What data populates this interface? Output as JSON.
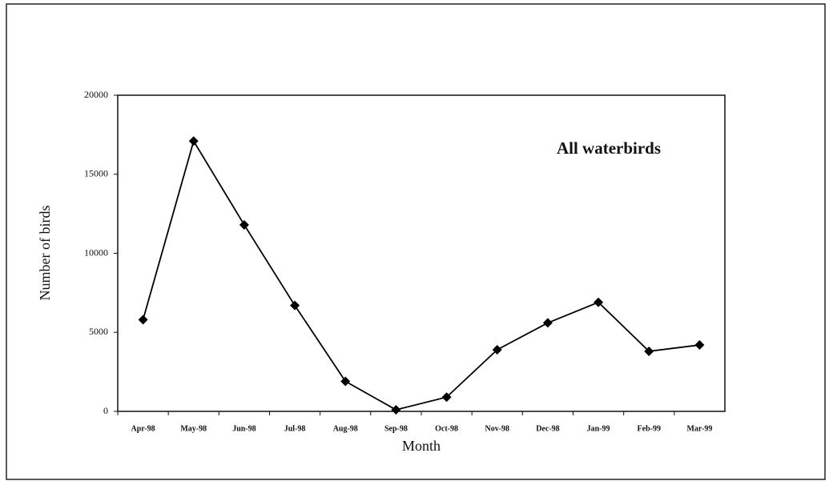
{
  "chart_data": {
    "type": "line",
    "annotation": "All waterbirds",
    "x_label": "Month",
    "y_label": "Number of birds",
    "categories": [
      "Apr-98",
      "May-98",
      "Jun-98",
      "Jul-98",
      "Aug-98",
      "Sep-98",
      "Oct-98",
      "Nov-98",
      "Dec-98",
      "Jan-99",
      "Feb-99",
      "Mar-99"
    ],
    "series": [
      {
        "name": "All waterbirds",
        "color": "#000000",
        "values": [
          5800,
          17100,
          11800,
          6700,
          1900,
          100,
          900,
          3900,
          5600,
          6900,
          3800,
          4200
        ]
      }
    ],
    "ylim": [
      0,
      20000
    ],
    "yticks": [
      0,
      5000,
      10000,
      15000,
      20000
    ],
    "grid": false
  }
}
